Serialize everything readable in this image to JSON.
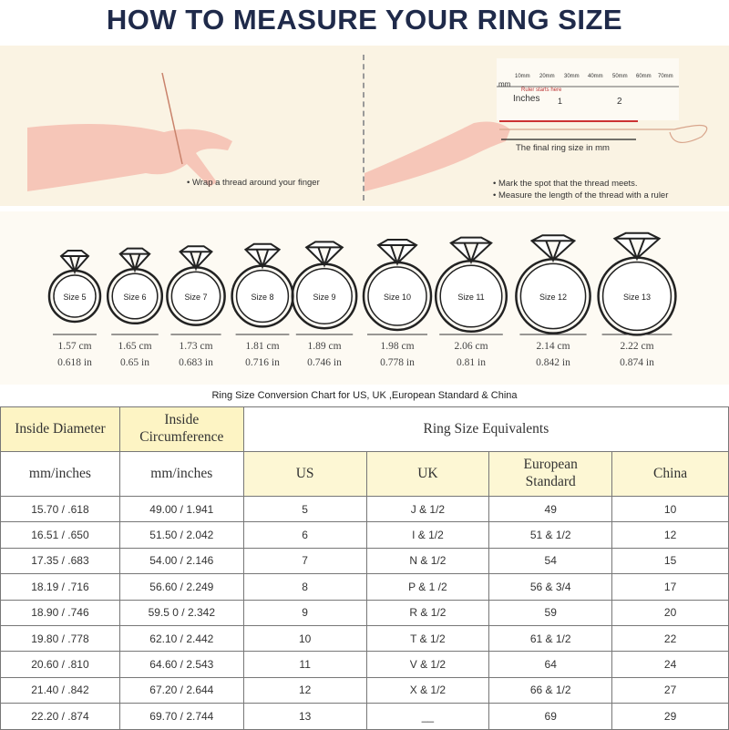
{
  "title": "HOW TO MEASURE YOUR RING SIZE",
  "instructions": {
    "left": "• Wrap a thread around your finger",
    "right": [
      "• Mark the spot that the thread meets.",
      "• Measure the length of the thread with a ruler"
    ],
    "ruler": {
      "mm_ticks": [
        "10mm",
        "20mm",
        "30mm",
        "40mm",
        "50mm",
        "60mm",
        "70mm"
      ],
      "mm_label": "mm",
      "start": "Ruler starts here",
      "inches_label": "Inches",
      "inch_ticks": [
        "1",
        "2"
      ],
      "final": "The final ring size in mm"
    }
  },
  "rings": [
    {
      "label": "Size 5",
      "cm": "1.57 cm",
      "in": "0.618 in"
    },
    {
      "label": "Size 6",
      "cm": "1.65 cm",
      "in": "0.65 in"
    },
    {
      "label": "Size 7",
      "cm": "1.73 cm",
      "in": "0.683 in"
    },
    {
      "label": "Size 8",
      "cm": "1.81 cm",
      "in": "0.716 in"
    },
    {
      "label": "Size 9",
      "cm": "1.89 cm",
      "in": "0.746 in"
    },
    {
      "label": "Size 10",
      "cm": "1.98 cm",
      "in": "0.778 in"
    },
    {
      "label": "Size 11",
      "cm": "2.06 cm",
      "in": "0.81 in"
    },
    {
      "label": "Size 12",
      "cm": "2.14 cm",
      "in": "0.842 in"
    },
    {
      "label": "Size 13",
      "cm": "2.22 cm",
      "in": "0.874 in"
    }
  ],
  "table": {
    "caption": "Ring Size Conversion Chart for US, UK ,European Standard & China",
    "h_diameter": "Inside Diameter",
    "h_circ_1": "Inside",
    "h_circ_2": "Circumference",
    "h_equiv": "Ring Size Equivalents",
    "sub": {
      "mm1": "mm/inches",
      "mm2": "mm/inches",
      "us": "US",
      "uk": "UK",
      "eu1": "European",
      "eu2": "Standard",
      "china": "China"
    },
    "rows": [
      [
        "15.70 / .618",
        "49.00 / 1.941",
        "5",
        "J & 1/2",
        "49",
        "10"
      ],
      [
        "16.51 / .650",
        "51.50 / 2.042",
        "6",
        "I & 1/2",
        "51 & 1/2",
        "12"
      ],
      [
        "17.35 / .683",
        "54.00 / 2.146",
        "7",
        "N & 1/2",
        "54",
        "15"
      ],
      [
        "18.19 / .716",
        "56.60 / 2.249",
        "8",
        "P & 1 /2",
        "56 & 3/4",
        "17"
      ],
      [
        "18.90 / .746",
        "59.5 0 / 2.342",
        "9",
        "R & 1/2",
        "59",
        "20"
      ],
      [
        "19.80 / .778",
        "62.10 / 2.442",
        "10",
        "T & 1/2",
        "61 & 1/2",
        "22"
      ],
      [
        "20.60 / .810",
        "64.60 / 2.543",
        "11",
        "V & 1/2",
        "64",
        "24"
      ],
      [
        "21.40 / .842",
        "67.20 / 2.644",
        "12",
        "X & 1/2",
        "66 & 1/2",
        "27"
      ],
      [
        "22.20 / .874",
        "69.70 / 2.744",
        "13",
        "__",
        "69",
        "29"
      ]
    ]
  }
}
